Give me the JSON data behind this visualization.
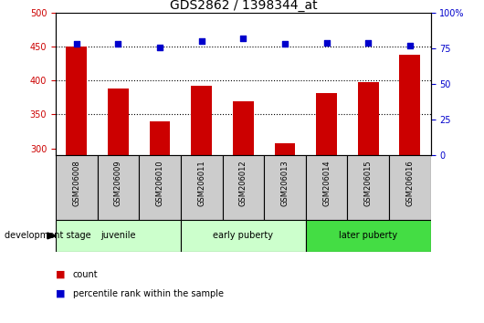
{
  "title": "GDS2862 / 1398344_at",
  "categories": [
    "GSM206008",
    "GSM206009",
    "GSM206010",
    "GSM206011",
    "GSM206012",
    "GSM206013",
    "GSM206014",
    "GSM206015",
    "GSM206016"
  ],
  "counts": [
    450,
    388,
    340,
    393,
    370,
    308,
    382,
    398,
    438
  ],
  "percentiles": [
    78,
    78,
    76,
    80,
    82,
    78,
    79,
    79,
    77
  ],
  "ylim_left": [
    290,
    500
  ],
  "ylim_right": [
    0,
    100
  ],
  "yticks_left": [
    300,
    350,
    400,
    450,
    500
  ],
  "yticks_right": [
    0,
    25,
    50,
    75,
    100
  ],
  "groups": [
    {
      "label": "juvenile",
      "start": 0,
      "end": 3
    },
    {
      "label": "early puberty",
      "start": 3,
      "end": 6
    },
    {
      "label": "later puberty",
      "start": 6,
      "end": 9
    }
  ],
  "group_colors": [
    "#ccffcc",
    "#ccffcc",
    "#44dd44"
  ],
  "bar_color": "#cc0000",
  "dot_color": "#0000cc",
  "bar_width": 0.5,
  "tick_color_left": "#cc0000",
  "tick_color_right": "#0000cc",
  "legend_count_color": "#cc0000",
  "legend_pct_color": "#0000cc",
  "label_box_color": "#cccccc",
  "dev_stage_label": "development stage",
  "count_label": "count",
  "pct_label": "percentile rank within the sample",
  "title_fontsize": 10,
  "tick_fontsize": 7,
  "cat_fontsize": 6,
  "group_fontsize": 7,
  "legend_fontsize": 7
}
